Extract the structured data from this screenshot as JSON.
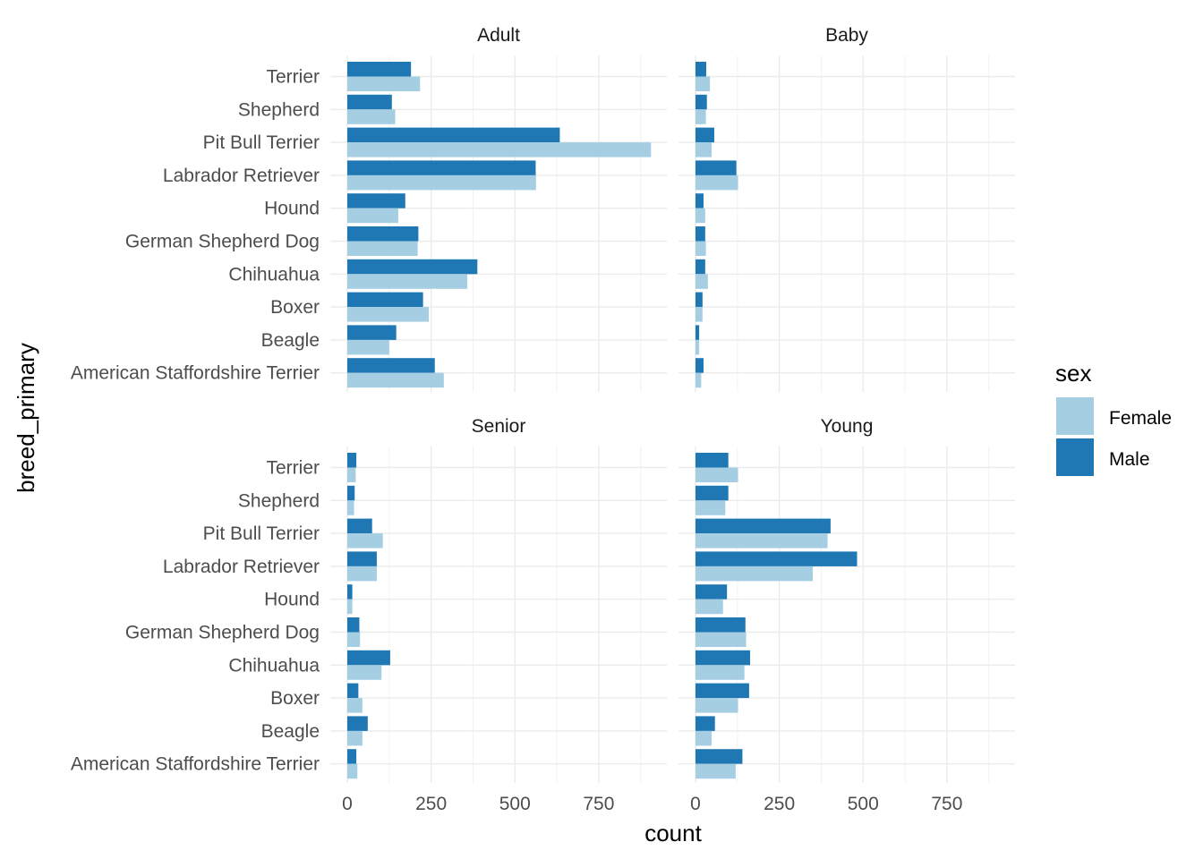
{
  "chart_data": {
    "type": "bar",
    "orientation": "horizontal",
    "facet_var": "age",
    "facets": [
      "Adult",
      "Baby",
      "Senior",
      "Young"
    ],
    "categories": [
      "Terrier",
      "Shepherd",
      "Pit Bull Terrier",
      "Labrador Retriever",
      "Hound",
      "German Shepherd Dog",
      "Chihuahua",
      "Boxer",
      "Beagle",
      "American Staffordshire Terrier"
    ],
    "series": [
      {
        "name": "Female",
        "color": "#a6cee3",
        "values": {
          "Adult": [
            217,
            143,
            906,
            563,
            152,
            210,
            358,
            243,
            125,
            288
          ],
          "Baby": [
            43,
            31,
            48,
            127,
            29,
            31,
            37,
            21,
            11,
            17
          ],
          "Senior": [
            25,
            20,
            106,
            88,
            15,
            38,
            102,
            45,
            45,
            30
          ],
          "Young": [
            127,
            89,
            394,
            350,
            82,
            151,
            146,
            127,
            48,
            120
          ]
        }
      },
      {
        "name": "Male",
        "color": "#1f78b4",
        "values": {
          "Adult": [
            190,
            133,
            634,
            562,
            173,
            212,
            388,
            226,
            146,
            261
          ],
          "Baby": [
            32,
            34,
            56,
            122,
            24,
            29,
            29,
            21,
            11,
            24
          ],
          "Senior": [
            27,
            22,
            74,
            88,
            15,
            36,
            128,
            33,
            61,
            27
          ],
          "Young": [
            98,
            98,
            403,
            482,
            94,
            149,
            163,
            160,
            58,
            140
          ]
        }
      }
    ],
    "xlabel": "count",
    "ylabel": "breed_primary",
    "xlim": [
      -50,
      955
    ],
    "xticks": [
      0,
      250,
      500,
      750
    ],
    "xtick_labels": [
      "0",
      "250",
      "500",
      "750"
    ],
    "grid": true,
    "legend": {
      "title": "sex",
      "position": "right",
      "labels": [
        "Female",
        "Male"
      ]
    }
  }
}
